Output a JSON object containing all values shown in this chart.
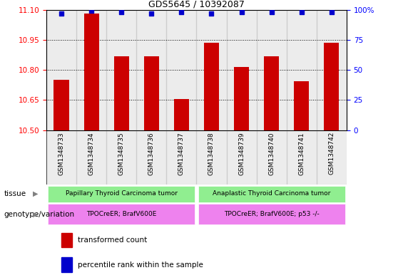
{
  "title": "GDS5645 / 10392087",
  "samples": [
    "GSM1348733",
    "GSM1348734",
    "GSM1348735",
    "GSM1348736",
    "GSM1348737",
    "GSM1348738",
    "GSM1348739",
    "GSM1348740",
    "GSM1348741",
    "GSM1348742"
  ],
  "transformed_counts": [
    10.75,
    11.08,
    10.87,
    10.87,
    10.655,
    10.935,
    10.815,
    10.87,
    10.745,
    10.935
  ],
  "percentile_ranks": [
    97,
    99,
    98,
    97,
    98,
    97,
    98,
    98,
    98,
    98
  ],
  "ylim_left": [
    10.5,
    11.1
  ],
  "ylim_right": [
    0,
    100
  ],
  "yticks_left": [
    10.5,
    10.65,
    10.8,
    10.95,
    11.1
  ],
  "yticks_right": [
    0,
    25,
    50,
    75,
    100
  ],
  "bar_color": "#cc0000",
  "dot_color": "#0000cc",
  "tissue_group1": "Papillary Thyroid Carcinoma tumor",
  "tissue_group2": "Anaplastic Thyroid Carcinoma tumor",
  "genotype_group1": "TPOCreER; BrafV600E",
  "genotype_group2": "TPOCreER; BrafV600E; p53 -/-",
  "tissue_color": "#90ee90",
  "genotype_color": "#ee82ee",
  "n_group1": 5,
  "n_group2": 5,
  "bar_color_legend": "#cc0000",
  "dot_color_legend": "#0000cc",
  "bar_width": 0.5
}
